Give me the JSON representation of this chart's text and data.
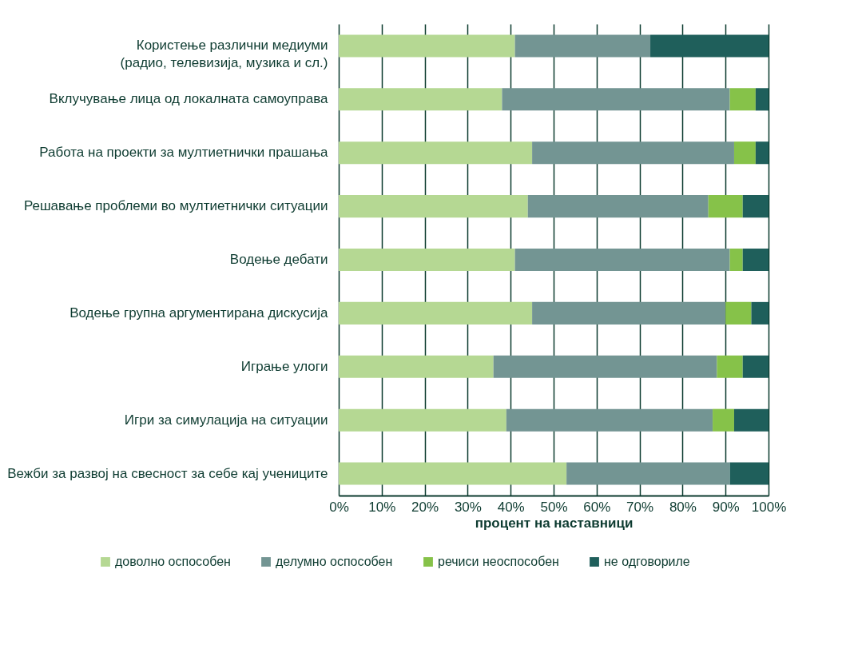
{
  "chart_data": {
    "type": "bar",
    "orientation": "horizontal",
    "stacked": true,
    "xlabel": "процент на наставници",
    "categories": [
      "Користење различни медиуми\n(радио, телевизија, музика и сл.)",
      "Вклучување  лица од локалната самоуправа",
      "Работа на проекти за мултиетнички прашања",
      "Решавање проблеми во мултиетнички ситуации",
      "Водење дебати",
      "Водење групна аргументирана дискусија",
      "Играње улоги",
      "Игри за симулација на ситуации",
      "Вежби за развој на свесност за себе кај учениците"
    ],
    "series": [
      {
        "name": "доволно оспособен",
        "color": "#b5d893",
        "values": [
          41,
          38,
          45,
          44,
          41,
          45,
          36,
          39,
          53
        ]
      },
      {
        "name": "делумно оспособен",
        "color": "#739593",
        "values": [
          31.5,
          53,
          47,
          42,
          50,
          45,
          52,
          48,
          38
        ]
      },
      {
        "name": "речиси неоспособен",
        "color": "#86c249",
        "values": [
          0,
          6,
          5,
          8,
          3,
          6,
          6,
          5,
          0
        ]
      },
      {
        "name": "не одговориле",
        "color": "#1f5f5b",
        "values": [
          27.5,
          3,
          3,
          6,
          6,
          4,
          6,
          8,
          9
        ]
      }
    ],
    "xlim": [
      0,
      100
    ],
    "xticks": [
      {
        "value": 0,
        "label": "0%"
      },
      {
        "value": 10,
        "label": "10%"
      },
      {
        "value": 20,
        "label": "20%"
      },
      {
        "value": 30,
        "label": "30%"
      },
      {
        "value": 40,
        "label": "40%"
      },
      {
        "value": 50,
        "label": "50%"
      },
      {
        "value": 60,
        "label": "60%"
      },
      {
        "value": 70,
        "label": "70%"
      },
      {
        "value": 80,
        "label": "80%"
      },
      {
        "value": 90,
        "label": "90%"
      },
      {
        "value": 100,
        "label": "100%"
      }
    ],
    "grid": "x",
    "legend": "bottom"
  }
}
